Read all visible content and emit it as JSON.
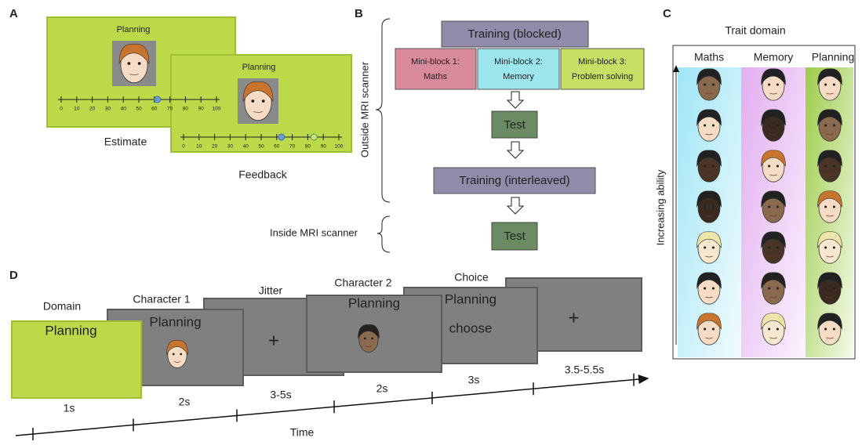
{
  "panel_a": {
    "label": "A",
    "screens": [
      {
        "title": "Planning",
        "estimate": 62
      },
      {
        "title": "Planning",
        "estimate": 63,
        "feedback": 84
      }
    ],
    "scale_ticks": [
      0,
      10,
      20,
      30,
      40,
      50,
      60,
      70,
      80,
      90,
      100
    ],
    "captions": [
      "Estimate",
      "Feedback"
    ]
  },
  "panel_b": {
    "label": "B",
    "outside": "Outside MRI scanner",
    "inside": "Inside MRI scanner",
    "training_blocked": "Training (blocked)",
    "miniblocks": [
      [
        "Mini-block 1:",
        "Maths"
      ],
      [
        "Mini-block 2:",
        "Memory"
      ],
      [
        "Mini-block 3:",
        "Problem solving"
      ]
    ],
    "test_1": "Test",
    "training_interleaved": "Training (interleaved)",
    "test_2": "Test"
  },
  "panel_c": {
    "label": "C",
    "title": "Trait domain",
    "columns": [
      "Maths",
      "Memory",
      "Planning"
    ],
    "y_label": "Increasing ability"
  },
  "panel_d": {
    "label": "D",
    "axis_label": "Time",
    "steps": [
      {
        "label": "Domain",
        "screen": [
          "Planning"
        ],
        "duration": "1s"
      },
      {
        "label": "Character 1",
        "screen": [
          "Planning"
        ],
        "duration": "2s"
      },
      {
        "label": "Jitter",
        "screen": [
          "+"
        ],
        "duration": "3-5s"
      },
      {
        "label": "Character 2",
        "screen": [
          "Planning"
        ],
        "duration": "2s"
      },
      {
        "label": "Choice",
        "screen": [
          "Planning",
          "choose"
        ],
        "duration": "3s"
      },
      {
        "screen": [
          "+"
        ],
        "duration": "3.5-5.5s"
      }
    ]
  }
}
